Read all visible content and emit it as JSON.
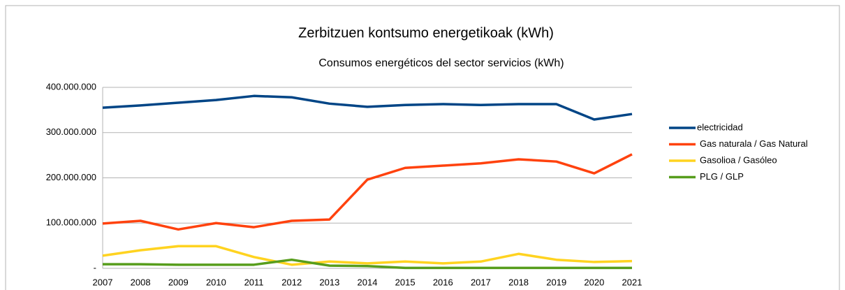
{
  "chart_data": {
    "type": "line",
    "title": "Zerbitzuen kontsumo energetikoak (kWh)",
    "subtitle": "Consumos energéticos del sector servicios (kWh)",
    "categories": [
      "2007",
      "2008",
      "2009",
      "2010",
      "2011",
      "2012",
      "2013",
      "2014",
      "2015",
      "2016",
      "2017",
      "2018",
      "2019",
      "2020",
      "2021"
    ],
    "series": [
      {
        "name": "electricidad",
        "color": "#004586",
        "values": [
          355000000,
          360000000,
          366000000,
          372000000,
          381000000,
          378000000,
          364000000,
          357000000,
          361000000,
          363000000,
          361000000,
          363000000,
          363000000,
          329000000,
          341000000
        ]
      },
      {
        "name": "Gas naturala / Gas Natural",
        "color": "#ff420e",
        "values": [
          99000000,
          105000000,
          86000000,
          100000000,
          91000000,
          105000000,
          108000000,
          196000000,
          222000000,
          227000000,
          232000000,
          241000000,
          236000000,
          210000000,
          252000000
        ]
      },
      {
        "name": "Gasolioa / Gasóleo",
        "color": "#ffd320",
        "values": [
          28000000,
          40000000,
          49000000,
          49000000,
          25000000,
          8000000,
          15000000,
          11000000,
          15000000,
          11000000,
          15000000,
          32000000,
          19000000,
          14000000,
          16000000
        ]
      },
      {
        "name": "PLG / GLP",
        "color": "#579d1c",
        "values": [
          9000000,
          9000000,
          8000000,
          8000000,
          8000000,
          19000000,
          6000000,
          5000000,
          1000000,
          1000000,
          1000000,
          1000000,
          1000000,
          1000000,
          1000000
        ]
      }
    ],
    "ylim": [
      0,
      400000000
    ],
    "yticks": [
      {
        "value": 0,
        "label": "-"
      },
      {
        "value": 100000000,
        "label": "100.000.000"
      },
      {
        "value": 200000000,
        "label": "200.000.000"
      },
      {
        "value": 300000000,
        "label": "300.000.000"
      },
      {
        "value": 400000000,
        "label": "400.000.000"
      }
    ],
    "grid": true,
    "legend": "right"
  }
}
